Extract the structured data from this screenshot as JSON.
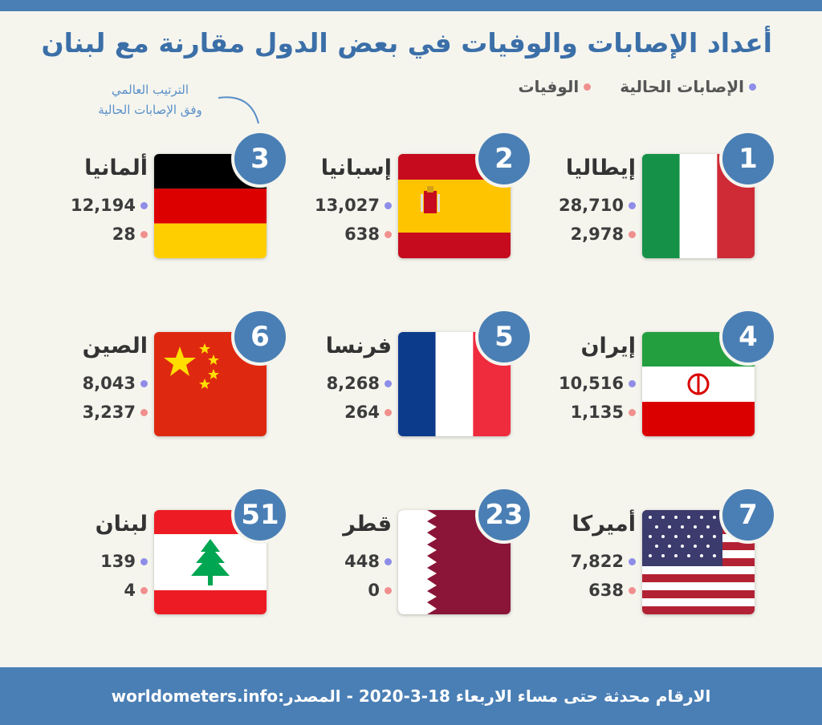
{
  "title": "أعداد الإصابات والوفيات في بعض الدول مقارنة مع لبنان",
  "legend": {
    "cases_label": "الإصابات الحالية",
    "deaths_label": "الوفيات"
  },
  "rank_note": {
    "line1": "الترتيب العالمي",
    "line2": "وفق الإصابات الحالية"
  },
  "countries": [
    {
      "rank": "1",
      "name": "إيطاليا",
      "cases": "28,710",
      "deaths": "2,978",
      "flag": "italy"
    },
    {
      "rank": "2",
      "name": "إسبانيا",
      "cases": "13,027",
      "deaths": "638",
      "flag": "spain"
    },
    {
      "rank": "3",
      "name": "ألمانيا",
      "cases": "12,194",
      "deaths": "28",
      "flag": "germany"
    },
    {
      "rank": "4",
      "name": "إيران",
      "cases": "10,516",
      "deaths": "1,135",
      "flag": "iran"
    },
    {
      "rank": "5",
      "name": "فرنسا",
      "cases": "8,268",
      "deaths": "264",
      "flag": "france"
    },
    {
      "rank": "6",
      "name": "الصين",
      "cases": "8,043",
      "deaths": "3,237",
      "flag": "china"
    },
    {
      "rank": "7",
      "name": "أميركا",
      "cases": "7,822",
      "deaths": "638",
      "flag": "usa"
    },
    {
      "rank": "23",
      "name": "قطر",
      "cases": "448",
      "deaths": "0",
      "flag": "qatar"
    },
    {
      "rank": "51",
      "name": "لبنان",
      "cases": "139",
      "deaths": "4",
      "flag": "lebanon"
    }
  ],
  "footer": "الارقام محدثة حتى مساء الاربعاء 18-3-2020 - المصدر:worldometers.info",
  "colors": {
    "accent": "#4a7fb5",
    "cases_dot": "#8e8ee8",
    "deaths_dot": "#f0908e"
  }
}
